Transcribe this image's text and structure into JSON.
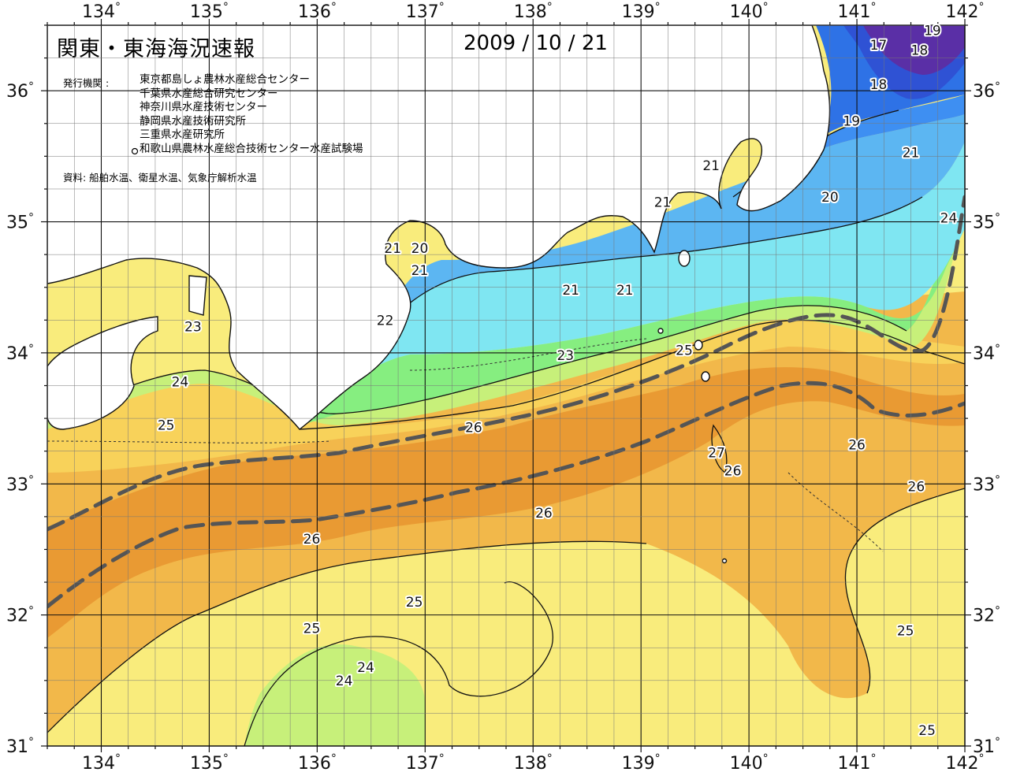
{
  "header": {
    "title": "関東・東海海況速報",
    "date": "2009 / 10 / 21"
  },
  "publisher": {
    "label": "発行機関 :",
    "items": [
      "東京都島しょ農林水産総合センター",
      "千葉県水産総合研究センター",
      "神奈川県水産技術センター",
      "静岡県水産技術研究所",
      "三重県水産研究所",
      "和歌山県農林水産総合技術センター水産試験場"
    ]
  },
  "source_note": "資料: 船舶水温、衛星水温、気象庁解析水温",
  "axes": {
    "lon_labels": [
      "134",
      "135",
      "136",
      "137",
      "138",
      "139",
      "140",
      "141",
      "142"
    ],
    "lat_labels": [
      "36",
      "35",
      "34",
      "33",
      "32",
      "31"
    ],
    "degree_symbol": "°",
    "lon_range": [
      133.5,
      142
    ],
    "lat_range": [
      31,
      36.5
    ]
  },
  "colors": {
    "c17": "#5a2fa6",
    "c18": "#2f52d4",
    "c19": "#2e72e6",
    "c20": "#3e8ff2",
    "c21": "#5cb6f2",
    "c22": "#7fe6f2",
    "c23": "#86ee80",
    "c24": "#c7f07a",
    "c25": "#f8d25a",
    "c26": "#f2b84a",
    "c27": "#e99a33",
    "warm_pale": "#f9ec7c",
    "land": "#ffffff",
    "kuroshio_axis": "#555555"
  },
  "contour_labels": [
    {
      "text": "17",
      "lon": 141.2,
      "lat": 36.35
    },
    {
      "text": "18",
      "lon": 141.58,
      "lat": 36.31
    },
    {
      "text": "19",
      "lon": 141.7,
      "lat": 36.46
    },
    {
      "text": "18",
      "lon": 141.2,
      "lat": 36.05
    },
    {
      "text": "19",
      "lon": 140.95,
      "lat": 35.77
    },
    {
      "text": "21",
      "lon": 141.5,
      "lat": 35.53
    },
    {
      "text": "20",
      "lon": 140.75,
      "lat": 35.19
    },
    {
      "text": "24",
      "lon": 141.85,
      "lat": 35.03
    },
    {
      "text": "21",
      "lon": 139.65,
      "lat": 35.43
    },
    {
      "text": "21",
      "lon": 139.2,
      "lat": 35.15
    },
    {
      "text": "21",
      "lon": 136.7,
      "lat": 34.8
    },
    {
      "text": "20",
      "lon": 136.95,
      "lat": 34.8
    },
    {
      "text": "21",
      "lon": 136.95,
      "lat": 34.63
    },
    {
      "text": "21",
      "lon": 138.35,
      "lat": 34.48
    },
    {
      "text": "21",
      "lon": 138.85,
      "lat": 34.48
    },
    {
      "text": "22",
      "lon": 136.63,
      "lat": 34.25
    },
    {
      "text": "23",
      "lon": 134.85,
      "lat": 34.2
    },
    {
      "text": "23",
      "lon": 138.3,
      "lat": 33.98
    },
    {
      "text": "25",
      "lon": 139.4,
      "lat": 34.02
    },
    {
      "text": "24",
      "lon": 134.73,
      "lat": 33.78
    },
    {
      "text": "25",
      "lon": 134.6,
      "lat": 33.45
    },
    {
      "text": "26",
      "lon": 137.45,
      "lat": 33.43
    },
    {
      "text": "27",
      "lon": 139.7,
      "lat": 33.24
    },
    {
      "text": "26",
      "lon": 139.85,
      "lat": 33.1
    },
    {
      "text": "26",
      "lon": 141.0,
      "lat": 33.3
    },
    {
      "text": "26",
      "lon": 141.55,
      "lat": 32.98
    },
    {
      "text": "26",
      "lon": 138.1,
      "lat": 32.78
    },
    {
      "text": "26",
      "lon": 135.95,
      "lat": 32.58
    },
    {
      "text": "25",
      "lon": 136.9,
      "lat": 32.1
    },
    {
      "text": "25",
      "lon": 135.95,
      "lat": 31.9
    },
    {
      "text": "24",
      "lon": 136.45,
      "lat": 31.6
    },
    {
      "text": "24",
      "lon": 136.25,
      "lat": 31.5
    },
    {
      "text": "25",
      "lon": 141.45,
      "lat": 31.88
    },
    {
      "text": "25",
      "lon": 141.65,
      "lat": 31.12
    }
  ]
}
